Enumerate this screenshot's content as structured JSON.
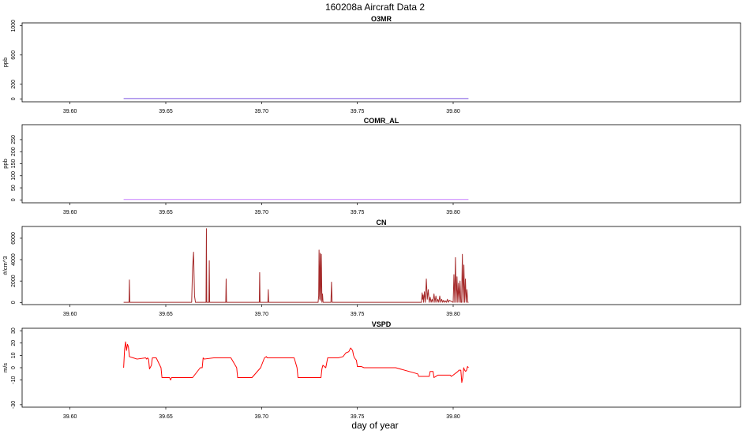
{
  "figure": {
    "title": "160208a   Aircraft Data 2",
    "xlabel": "day of year"
  },
  "chart_data": [
    {
      "type": "line",
      "title": "O3MR",
      "ylabel": "ppb",
      "xlim": [
        39.575,
        39.95
      ],
      "ylim": [
        -40,
        1040
      ],
      "x_ticks": [
        "39.60",
        "39.65",
        "39.70",
        "39.75",
        "39.80"
      ],
      "y_ticks": [
        "0",
        "200",
        "600",
        "1000"
      ],
      "color": "#7b55e0",
      "series": [
        {
          "x": [
            39.628,
            39.808
          ],
          "values": [
            5,
            5
          ]
        }
      ]
    },
    {
      "type": "line",
      "title": "COMR_AL",
      "ylabel": "ppb",
      "xlim": [
        39.575,
        39.95
      ],
      "ylim": [
        -12,
        312
      ],
      "x_ticks": [
        "39.60",
        "39.65",
        "39.70",
        "39.75",
        "39.80"
      ],
      "y_ticks": [
        "0",
        "50",
        "100",
        "150",
        "200",
        "250"
      ],
      "color": "#c77dff",
      "series": [
        {
          "x": [
            39.628,
            39.808
          ],
          "values": [
            2,
            2
          ]
        }
      ]
    },
    {
      "type": "line",
      "title": "CN",
      "ylabel": "#/cm^3",
      "xlim": [
        39.575,
        39.95
      ],
      "ylim": [
        -200,
        7100
      ],
      "x_ticks": [
        "39.60",
        "39.65",
        "39.70",
        "39.75",
        "39.80"
      ],
      "y_ticks": [
        "0",
        "2000",
        "4000",
        "6000"
      ],
      "color": "#a52a2a",
      "series": [
        {
          "x": [
            39.628,
            39.6308,
            39.631,
            39.6312,
            39.6635,
            39.664,
            39.6645,
            39.665,
            39.6655,
            39.671,
            39.6712,
            39.6714,
            39.6725,
            39.6727,
            39.6729,
            39.6813,
            39.6815,
            39.6817,
            39.6988,
            39.699,
            39.6992,
            39.7033,
            39.7035,
            39.7037,
            39.7295,
            39.7298,
            39.73,
            39.7303,
            39.7306,
            39.7309,
            39.7312,
            39.7315,
            39.7318,
            39.7321,
            39.7362,
            39.7365,
            39.7368,
            39.7835,
            39.7838,
            39.784,
            39.7843,
            39.7846,
            39.785,
            39.7855,
            39.786,
            39.7865,
            39.787,
            39.7875,
            39.788,
            39.7885,
            39.789,
            39.7895,
            39.79,
            39.7905,
            39.791,
            39.7915,
            39.792,
            39.7925,
            39.793,
            39.7935,
            39.794,
            39.7945,
            39.795,
            39.7955,
            39.796,
            39.7965,
            39.797,
            39.7975,
            39.798,
            39.8,
            39.8004,
            39.8008,
            39.8012,
            39.8016,
            39.802,
            39.8024,
            39.8028,
            39.8032,
            39.8036,
            39.804,
            39.8044,
            39.8048,
            39.8052,
            39.8056,
            39.806,
            39.8064,
            39.8068,
            39.8072,
            39.8076,
            39.808
          ],
          "values": [
            10,
            10,
            2100,
            10,
            10,
            3300,
            4700,
            600,
            10,
            10,
            6900,
            10,
            10,
            3900,
            10,
            10,
            2200,
            10,
            10,
            2800,
            10,
            10,
            1200,
            10,
            10,
            600,
            4900,
            300,
            4600,
            200,
            4500,
            10,
            800,
            10,
            10,
            1900,
            10,
            10,
            900,
            300,
            700,
            10,
            1000,
            10,
            2200,
            300,
            1200,
            10,
            500,
            10,
            300,
            10,
            800,
            10,
            600,
            10,
            300,
            10,
            600,
            10,
            300,
            10,
            200,
            10,
            150,
            10,
            300,
            10,
            200,
            10,
            2600,
            10,
            4200,
            10,
            2400,
            10,
            1800,
            10,
            2000,
            10,
            10,
            4500,
            10,
            3500,
            10,
            2200,
            10,
            1200,
            10,
            10
          ]
        }
      ]
    },
    {
      "type": "line",
      "title": "VSPD",
      "ylabel": "m/s",
      "xlim": [
        39.575,
        39.95
      ],
      "ylim": [
        -32,
        32
      ],
      "x_ticks": [
        "39.60",
        "39.65",
        "39.70",
        "39.75",
        "39.80"
      ],
      "y_ticks": [
        "-30",
        "-10",
        "0",
        "10",
        "20",
        "30"
      ],
      "color": "#ff0000",
      "series": [
        {
          "x": [
            39.628,
            39.6285,
            39.629,
            39.6295,
            39.63,
            39.6305,
            39.631,
            39.633,
            39.635,
            39.6395,
            39.64,
            39.6405,
            39.641,
            39.6415,
            39.6425,
            39.643,
            39.645,
            39.6475,
            39.648,
            39.652,
            39.6525,
            39.653,
            39.66,
            39.6625,
            39.664,
            39.666,
            39.668,
            39.669,
            39.6695,
            39.67,
            39.675,
            39.68,
            39.684,
            39.687,
            39.6875,
            39.69,
            39.695,
            39.6995,
            39.7015,
            39.7025,
            39.703,
            39.71,
            39.717,
            39.7185,
            39.719,
            39.725,
            39.731,
            39.7315,
            39.732,
            39.7335,
            39.7345,
            39.735,
            39.74,
            39.7425,
            39.744,
            39.7455,
            39.7465,
            39.747,
            39.7475,
            39.748,
            39.7485,
            39.7495,
            39.75,
            39.752,
            39.7535,
            39.754,
            39.76,
            39.77,
            39.7815,
            39.782,
            39.785,
            39.7875,
            39.788,
            39.7895,
            39.79,
            39.791,
            39.792,
            39.795,
            39.7965,
            39.7975,
            39.798,
            39.7985,
            39.799,
            39.8,
            39.8025,
            39.803,
            39.804,
            39.8045,
            39.805,
            39.8055,
            39.806,
            39.8065,
            39.807,
            39.8075,
            39.808
          ],
          "values": [
            0,
            15,
            21,
            14,
            19,
            17,
            9,
            8,
            7,
            8,
            7,
            8,
            7,
            -1,
            2,
            8,
            8,
            0,
            -8,
            -8,
            -10,
            -8,
            -8,
            -8,
            -8,
            -4,
            0,
            0,
            8,
            7,
            8,
            8,
            8,
            0,
            -8,
            -8,
            -8,
            0,
            8,
            9,
            8,
            8,
            8,
            0,
            -8,
            -8,
            -8,
            -1,
            2,
            0,
            8,
            8,
            8,
            9,
            12,
            13,
            16,
            15,
            14,
            10,
            8,
            6,
            1,
            1,
            0,
            0,
            0,
            0,
            -5,
            -7,
            -7,
            -7,
            -3,
            -3,
            -8,
            -7,
            -6,
            -6,
            -6,
            -6,
            -6,
            -6,
            -7,
            -6,
            -3,
            -2,
            -2,
            -12,
            -8,
            0,
            -2,
            -3,
            -2,
            1,
            0
          ]
        }
      ]
    }
  ]
}
